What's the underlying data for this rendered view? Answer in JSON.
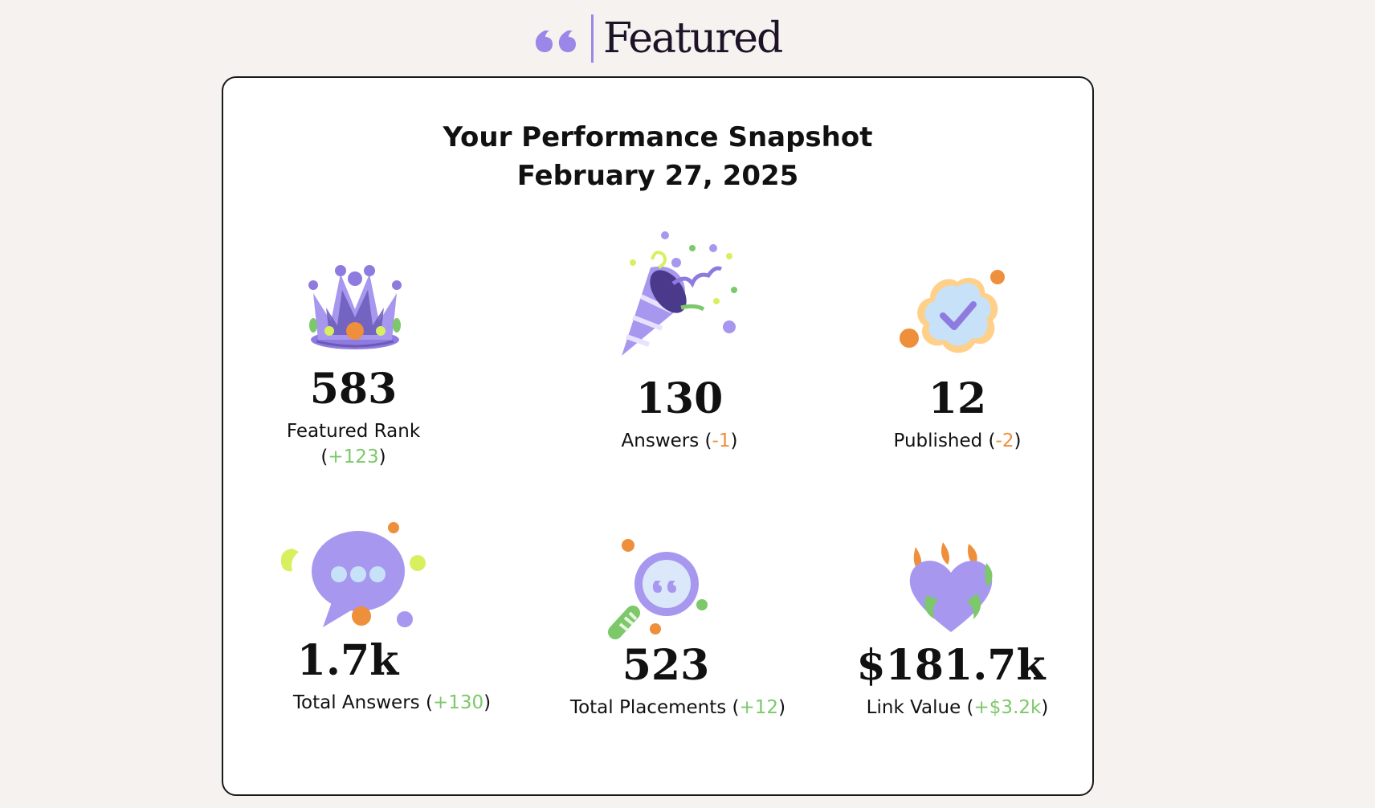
{
  "brand": {
    "name": "Featured",
    "quote_icon": "quote-icon",
    "accent_color": "#9b87e8"
  },
  "snapshot": {
    "title": "Your Performance Snapshot",
    "date": "February 27, 2025",
    "stats": [
      {
        "icon": "crown-icon",
        "value": "583",
        "label": "Featured Rank",
        "change": "+123",
        "change_type": "positive"
      },
      {
        "icon": "party-popper-icon",
        "value": "130",
        "label": "Answers",
        "change": "-1",
        "change_type": "negative"
      },
      {
        "icon": "verified-badge-icon",
        "value": "12",
        "label": "Published",
        "change": "-2",
        "change_type": "negative"
      },
      {
        "icon": "speech-bubble-icon",
        "value": "1.7k",
        "label": "Total Answers",
        "change": "+130",
        "change_type": "positive"
      },
      {
        "icon": "magnifier-icon",
        "value": "523",
        "label": "Total Placements",
        "change": "+12",
        "change_type": "positive"
      },
      {
        "icon": "flaming-heart-icon",
        "value": "$181.7k",
        "label": "Link Value",
        "change": "+$3.2k",
        "change_type": "positive"
      }
    ],
    "colors": {
      "positive": "#7cc86a",
      "negative": "#ee8f3b",
      "icon_purple": "#9b87e8",
      "icon_orange": "#ee8f3b",
      "icon_lime": "#d8f060"
    }
  }
}
